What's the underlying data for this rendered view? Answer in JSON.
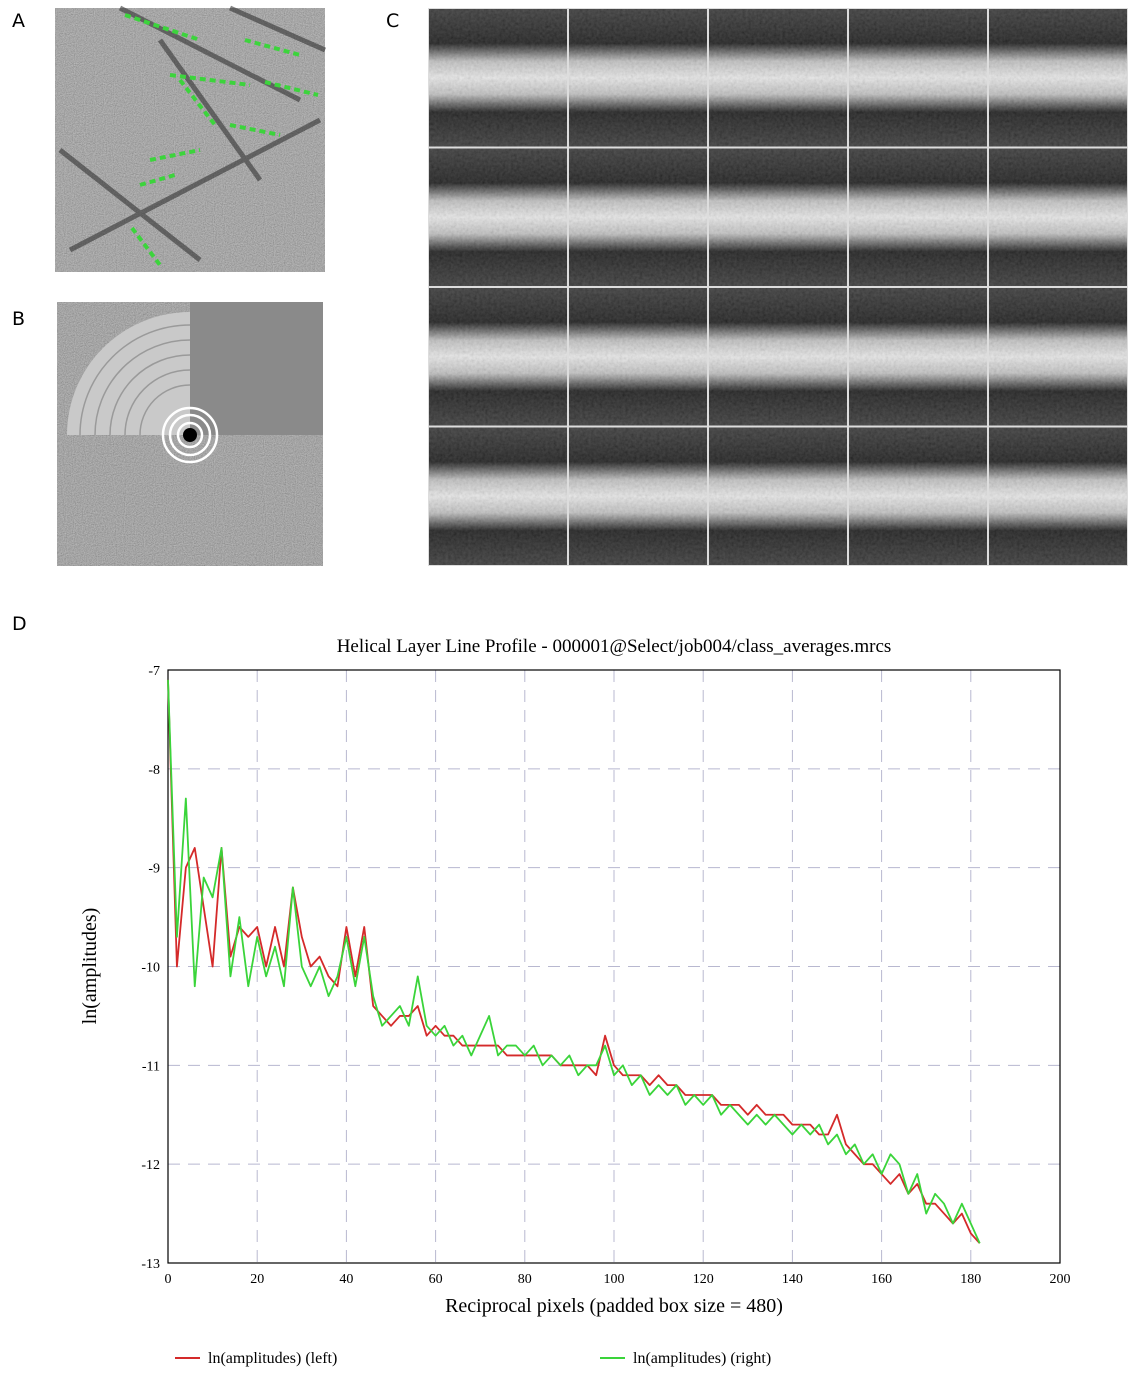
{
  "panels": [
    {
      "label": "A"
    },
    {
      "label": "B"
    },
    {
      "label": "C"
    },
    {
      "label": "D"
    }
  ],
  "chart_data": {
    "type": "line",
    "title": "Helical Layer Line Profile - 000001@Select/job004/class_averages.mrcs",
    "x_label": "Reciprocal pixels (padded box size = 480)",
    "y_label": "ln(amplitudes)",
    "xlim": [
      0,
      200
    ],
    "ylim": [
      -13,
      -7
    ],
    "xticks": [
      0,
      20,
      40,
      60,
      80,
      100,
      120,
      140,
      160,
      180,
      200
    ],
    "yticks": [
      -13,
      -12,
      -11,
      -10,
      -9,
      -8,
      -7
    ],
    "grid": true,
    "legend": "bottom",
    "x": [
      0,
      2,
      4,
      6,
      8,
      10,
      12,
      14,
      16,
      18,
      20,
      22,
      24,
      26,
      28,
      30,
      32,
      34,
      36,
      38,
      40,
      42,
      44,
      46,
      48,
      50,
      52,
      54,
      56,
      58,
      60,
      62,
      64,
      66,
      68,
      70,
      72,
      74,
      76,
      78,
      80,
      82,
      84,
      86,
      88,
      90,
      92,
      94,
      96,
      98,
      100,
      102,
      104,
      106,
      108,
      110,
      112,
      114,
      116,
      118,
      120,
      122,
      124,
      126,
      128,
      130,
      132,
      134,
      136,
      138,
      140,
      142,
      144,
      146,
      148,
      150,
      152,
      154,
      156,
      158,
      160,
      162,
      164,
      166,
      168,
      170,
      172,
      174,
      176,
      178,
      180,
      182
    ],
    "series": [
      {
        "name": "ln(amplitudes) (left)",
        "color": "#d42a2a",
        "values": [
          -7.1,
          -10.0,
          -9.0,
          -8.8,
          -9.4,
          -10.0,
          -8.8,
          -9.9,
          -9.6,
          -9.7,
          -9.6,
          -10.0,
          -9.6,
          -10.0,
          -9.2,
          -9.7,
          -10.0,
          -9.9,
          -10.1,
          -10.2,
          -9.6,
          -10.1,
          -9.6,
          -10.4,
          -10.5,
          -10.6,
          -10.5,
          -10.5,
          -10.4,
          -10.7,
          -10.6,
          -10.7,
          -10.7,
          -10.8,
          -10.8,
          -10.8,
          -10.8,
          -10.8,
          -10.9,
          -10.9,
          -10.9,
          -10.9,
          -10.9,
          -10.9,
          -11.0,
          -11.0,
          -11.0,
          -11.0,
          -11.1,
          -10.7,
          -11.0,
          -11.1,
          -11.1,
          -11.1,
          -11.2,
          -11.1,
          -11.2,
          -11.2,
          -11.3,
          -11.3,
          -11.3,
          -11.3,
          -11.4,
          -11.4,
          -11.4,
          -11.5,
          -11.4,
          -11.5,
          -11.5,
          -11.5,
          -11.6,
          -11.6,
          -11.6,
          -11.7,
          -11.7,
          -11.5,
          -11.8,
          -11.9,
          -12.0,
          -12.0,
          -12.1,
          -12.2,
          -12.1,
          -12.3,
          -12.2,
          -12.4,
          -12.4,
          -12.5,
          -12.6,
          -12.5,
          -12.7,
          -12.8
        ]
      },
      {
        "name": "ln(amplitudes) (right)",
        "color": "#3ad43a",
        "values": [
          -7.1,
          -9.7,
          -8.3,
          -10.2,
          -9.1,
          -9.3,
          -8.8,
          -10.1,
          -9.5,
          -10.2,
          -9.7,
          -10.1,
          -9.8,
          -10.2,
          -9.2,
          -10.0,
          -10.2,
          -10.0,
          -10.3,
          -10.1,
          -9.7,
          -10.2,
          -9.7,
          -10.3,
          -10.6,
          -10.5,
          -10.4,
          -10.6,
          -10.1,
          -10.6,
          -10.7,
          -10.6,
          -10.8,
          -10.7,
          -10.9,
          -10.7,
          -10.5,
          -10.9,
          -10.8,
          -10.8,
          -10.9,
          -10.8,
          -11.0,
          -10.9,
          -11.0,
          -10.9,
          -11.1,
          -11.0,
          -11.0,
          -10.8,
          -11.1,
          -11.0,
          -11.2,
          -11.1,
          -11.3,
          -11.2,
          -11.3,
          -11.2,
          -11.4,
          -11.3,
          -11.4,
          -11.3,
          -11.5,
          -11.4,
          -11.5,
          -11.6,
          -11.5,
          -11.6,
          -11.5,
          -11.6,
          -11.7,
          -11.6,
          -11.7,
          -11.6,
          -11.8,
          -11.7,
          -11.9,
          -11.8,
          -12.0,
          -11.9,
          -12.1,
          -11.9,
          -12.0,
          -12.3,
          -12.1,
          -12.5,
          -12.3,
          -12.4,
          -12.6,
          -12.4,
          -12.6,
          -12.8
        ]
      }
    ]
  }
}
